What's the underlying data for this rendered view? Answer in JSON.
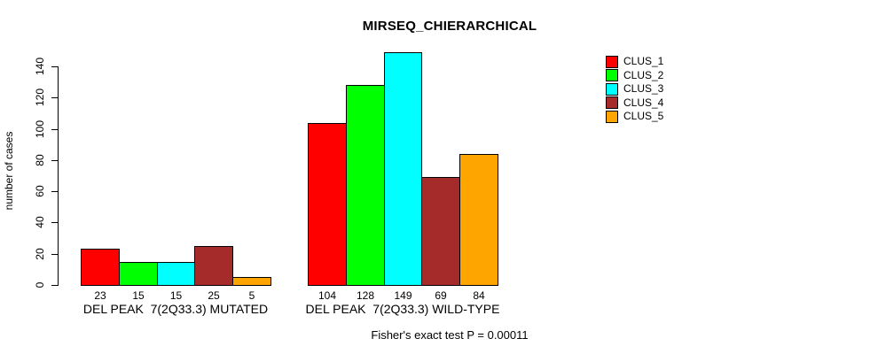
{
  "chart_data": {
    "type": "bar",
    "title": "MIRSEQ_CHIERARCHICAL",
    "xlabel": "",
    "ylabel": "number of cases",
    "ylim": [
      0,
      140
    ],
    "yticks": [
      0,
      20,
      40,
      60,
      80,
      100,
      120,
      140
    ],
    "grid": false,
    "legend_position": "top-right",
    "categories": [
      "DEL PEAK  7(2Q33.3) MUTATED",
      "DEL PEAK  7(2Q33.3) WILD-TYPE"
    ],
    "series": [
      {
        "name": "CLUS_1",
        "color": "#ff0000",
        "values": [
          23,
          104
        ]
      },
      {
        "name": "CLUS_2",
        "color": "#00ff00",
        "values": [
          15,
          128
        ]
      },
      {
        "name": "CLUS_3",
        "color": "#00ffff",
        "values": [
          15,
          149
        ]
      },
      {
        "name": "CLUS_4",
        "color": "#a52a2a",
        "values": [
          25,
          69
        ]
      },
      {
        "name": "CLUS_5",
        "color": "#ffa500",
        "values": [
          5,
          84
        ]
      }
    ],
    "bar_value_labels_shown": true,
    "annotation": "Fisher's exact test P = 0.00011",
    "colors": {
      "background": "#ffffff",
      "axis": "#000000",
      "bar_border": "#000000",
      "text": "#000000"
    }
  }
}
